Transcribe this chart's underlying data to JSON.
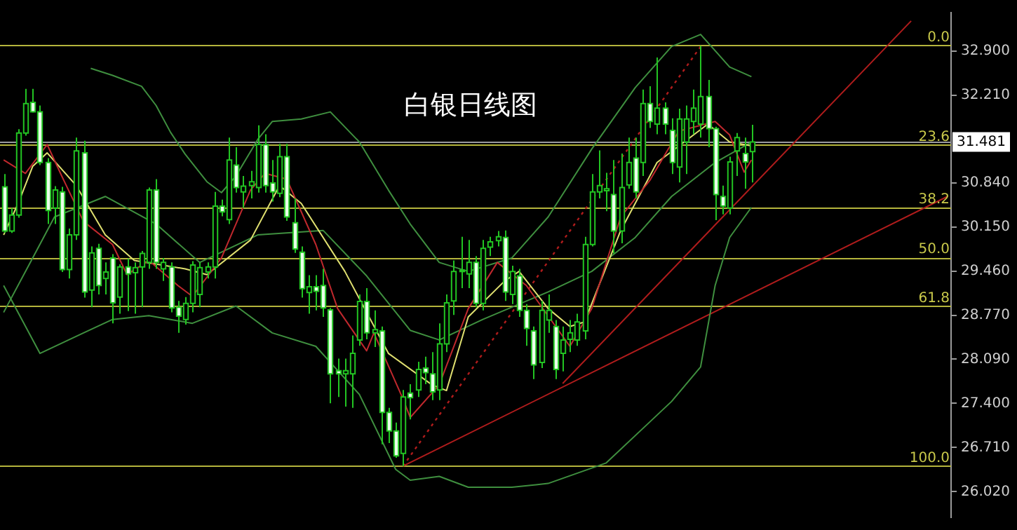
{
  "chart_data": {
    "type": "candlestick",
    "title": "白银日线图",
    "categories": [
      null,
      null,
      null,
      null,
      null,
      null,
      null,
      null,
      null,
      null,
      null,
      null,
      null,
      null,
      null,
      null,
      null,
      null,
      null,
      null,
      null,
      null,
      null,
      null,
      null,
      null,
      null,
      null,
      null,
      null,
      null,
      null,
      null,
      null,
      null,
      null,
      null,
      null,
      null,
      null,
      null,
      null,
      null,
      null,
      null,
      null,
      null,
      null,
      null,
      null,
      null,
      null,
      null,
      null,
      null,
      null,
      null,
      null,
      null,
      null,
      null,
      null,
      null,
      null,
      null,
      null,
      null,
      null,
      null,
      null,
      null,
      null,
      null,
      null,
      null,
      null,
      null,
      null,
      null,
      null,
      null,
      null,
      null,
      null,
      null,
      null,
      null,
      null,
      null,
      null,
      null,
      null,
      null,
      null,
      null,
      null,
      null,
      null,
      null,
      null,
      null,
      null,
      null,
      null,
      null,
      null,
      null,
      null,
      null,
      null,
      null,
      null,
      null,
      null,
      null,
      null,
      null,
      null,
      null,
      null,
      null,
      null,
      null,
      null,
      null,
      null,
      null,
      null,
      null,
      null,
      null
    ],
    "ohlc": [
      [
        30.78,
        30.98,
        30.06,
        30.09
      ],
      [
        30.09,
        30.45,
        30.06,
        30.34
      ],
      [
        30.34,
        31.68,
        30.3,
        31.62
      ],
      [
        31.62,
        32.31,
        31.58,
        32.08
      ],
      [
        32.1,
        32.31,
        31.94,
        31.95
      ],
      [
        31.95,
        32.05,
        31.12,
        31.16
      ],
      [
        31.16,
        31.23,
        30.2,
        30.41
      ],
      [
        30.45,
        30.79,
        30.2,
        30.73
      ],
      [
        30.7,
        30.78,
        29.45,
        29.49
      ],
      [
        29.49,
        30.13,
        29.35,
        30.03
      ],
      [
        30.03,
        31.55,
        29.95,
        31.34
      ],
      [
        31.31,
        31.5,
        29.05,
        29.14
      ],
      [
        29.17,
        29.85,
        28.9,
        29.75
      ],
      [
        29.82,
        29.89,
        29.1,
        29.24
      ],
      [
        29.35,
        29.6,
        29.1,
        29.45
      ],
      [
        29.67,
        29.73,
        28.65,
        28.97
      ],
      [
        29.06,
        29.57,
        28.8,
        29.53
      ],
      [
        29.53,
        29.66,
        28.84,
        29.42
      ],
      [
        29.44,
        29.6,
        28.8,
        29.52
      ],
      [
        29.53,
        29.78,
        28.9,
        29.74
      ],
      [
        29.6,
        30.77,
        29.5,
        30.73
      ],
      [
        30.73,
        30.9,
        29.5,
        29.6
      ],
      [
        29.5,
        29.67,
        29.31,
        29.6
      ],
      [
        29.53,
        29.6,
        28.82,
        28.89
      ],
      [
        28.9,
        29.0,
        28.5,
        28.76
      ],
      [
        28.71,
        29.06,
        28.63,
        28.96
      ],
      [
        28.96,
        29.62,
        28.82,
        29.56
      ],
      [
        29.1,
        29.6,
        28.9,
        29.52
      ],
      [
        29.45,
        29.6,
        29.35,
        29.53
      ],
      [
        29.53,
        30.7,
        29.35,
        30.48
      ],
      [
        30.48,
        30.58,
        30.32,
        30.39
      ],
      [
        30.27,
        31.55,
        30.2,
        31.2
      ],
      [
        31.12,
        31.4,
        30.69,
        30.77
      ],
      [
        30.7,
        30.95,
        30.45,
        30.79
      ],
      [
        30.8,
        31.03,
        30.6,
        30.86
      ],
      [
        30.77,
        31.74,
        30.69,
        31.44
      ],
      [
        31.44,
        31.6,
        30.69,
        30.8
      ],
      [
        30.84,
        31.2,
        30.55,
        30.7
      ],
      [
        30.68,
        31.45,
        30.62,
        31.25
      ],
      [
        31.25,
        31.45,
        30.25,
        30.31
      ],
      [
        30.22,
        30.6,
        29.75,
        29.81
      ],
      [
        29.76,
        29.85,
        29.05,
        29.19
      ],
      [
        29.13,
        29.4,
        28.8,
        29.22
      ],
      [
        29.22,
        29.4,
        28.85,
        29.15
      ],
      [
        29.24,
        29.5,
        28.75,
        28.89
      ],
      [
        28.86,
        28.89,
        27.4,
        27.86
      ],
      [
        27.91,
        28.1,
        27.5,
        27.86
      ],
      [
        27.86,
        28.1,
        27.35,
        27.91
      ],
      [
        27.86,
        28.46,
        27.33,
        28.18
      ],
      [
        28.39,
        29.1,
        28.3,
        28.99
      ],
      [
        28.99,
        29.2,
        28.4,
        28.5
      ],
      [
        28.5,
        28.85,
        28.28,
        28.55
      ],
      [
        28.53,
        28.6,
        26.76,
        27.26
      ],
      [
        27.26,
        27.33,
        26.78,
        26.97
      ],
      [
        26.97,
        27.1,
        26.55,
        26.58
      ],
      [
        26.62,
        27.61,
        26.42,
        27.5
      ],
      [
        27.56,
        27.7,
        27.15,
        27.49
      ],
      [
        27.61,
        28.05,
        27.5,
        27.93
      ],
      [
        27.95,
        28.13,
        27.7,
        27.88
      ],
      [
        27.86,
        28.2,
        27.45,
        27.58
      ],
      [
        27.61,
        28.65,
        27.45,
        28.33
      ],
      [
        28.33,
        29.1,
        28.2,
        28.97
      ],
      [
        29.0,
        29.63,
        28.78,
        29.46
      ],
      [
        29.46,
        30.0,
        29.2,
        29.48
      ],
      [
        29.42,
        29.95,
        29.2,
        29.6
      ],
      [
        29.6,
        29.7,
        28.9,
        28.96
      ],
      [
        28.96,
        29.95,
        28.85,
        29.82
      ],
      [
        29.84,
        30.0,
        29.7,
        29.92
      ],
      [
        29.94,
        30.09,
        29.85,
        30.0
      ],
      [
        29.99,
        30.1,
        29.0,
        29.14
      ],
      [
        29.1,
        29.55,
        28.95,
        29.46
      ],
      [
        29.39,
        29.5,
        28.75,
        28.85
      ],
      [
        28.85,
        28.95,
        28.3,
        28.57
      ],
      [
        28.53,
        28.6,
        27.78,
        28.0
      ],
      [
        28.04,
        29.0,
        27.95,
        28.85
      ],
      [
        28.7,
        29.1,
        28.5,
        28.85
      ],
      [
        28.6,
        28.7,
        27.78,
        27.93
      ],
      [
        28.18,
        28.6,
        27.9,
        28.39
      ],
      [
        28.4,
        28.7,
        28.2,
        28.5
      ],
      [
        28.39,
        28.8,
        28.3,
        28.67
      ],
      [
        28.53,
        30.0,
        28.4,
        29.88
      ],
      [
        29.88,
        30.98,
        29.85,
        30.7
      ],
      [
        30.7,
        31.35,
        30.6,
        30.8
      ],
      [
        30.72,
        31.0,
        30.4,
        30.75
      ],
      [
        30.66,
        31.2,
        29.74,
        30.09
      ],
      [
        30.09,
        31.3,
        29.9,
        30.77
      ],
      [
        30.81,
        31.55,
        30.75,
        31.16
      ],
      [
        31.23,
        31.55,
        30.6,
        30.7
      ],
      [
        31.16,
        32.3,
        30.95,
        32.08
      ],
      [
        32.08,
        32.35,
        31.7,
        31.8
      ],
      [
        31.76,
        32.8,
        31.6,
        32.01
      ],
      [
        32.01,
        32.1,
        31.6,
        31.76
      ],
      [
        31.66,
        31.85,
        30.98,
        31.16
      ],
      [
        31.09,
        32.0,
        30.85,
        31.84
      ],
      [
        31.48,
        32.05,
        30.98,
        31.84
      ],
      [
        31.8,
        32.3,
        31.6,
        32.01
      ],
      [
        31.76,
        32.98,
        31.55,
        32.19
      ],
      [
        32.19,
        32.45,
        31.4,
        31.69
      ],
      [
        31.69,
        31.72,
        30.26,
        30.66
      ],
      [
        30.63,
        30.8,
        30.35,
        30.48
      ],
      [
        30.45,
        31.25,
        30.35,
        31.17
      ],
      [
        31.34,
        31.62,
        30.95,
        31.55
      ],
      [
        31.3,
        31.55,
        30.75,
        31.17
      ],
      [
        31.33,
        31.75,
        30.85,
        31.48
      ],
      null,
      null,
      null,
      null,
      null,
      null,
      null,
      null,
      null,
      null,
      null,
      null,
      null,
      null,
      null,
      null,
      null,
      null,
      null,
      null,
      null,
      null,
      null,
      null,
      null,
      null,
      null
    ],
    "series": [
      {
        "type": "line",
        "color": "#c0282d",
        "values": [
          31.2,
          null,
          null,
          30.99,
          null,
          null,
          31.44,
          null,
          30.95,
          null,
          null,
          30.24,
          null,
          null,
          null,
          29.88,
          null,
          29.41,
          null,
          null,
          29.63,
          null,
          null,
          null,
          29.24,
          null,
          29.07,
          null,
          null,
          null,
          29.67,
          null,
          null,
          null,
          30.73,
          null,
          30.99,
          null,
          null,
          30.9,
          null,
          null,
          null,
          29.88,
          null,
          null,
          28.88,
          null,
          null,
          null,
          28.22,
          28.5,
          null,
          null,
          null,
          27.47,
          27.18,
          null,
          null,
          null,
          27.69,
          null,
          null,
          null,
          28.88,
          null,
          null,
          null,
          29.6,
          null,
          null,
          null,
          29.24,
          null,
          null,
          null,
          null,
          null,
          28.29,
          null,
          null,
          28.88,
          null,
          null,
          null,
          30.31,
          null,
          null,
          null,
          30.88,
          null,
          null,
          null,
          31.65,
          null,
          null,
          null,
          null,
          31.8,
          null,
          31.59,
          null,
          31.01,
          31.2,
          null,
          null,
          null,
          null,
          null,
          null,
          null,
          null,
          null,
          null,
          null,
          null,
          null,
          null,
          null,
          null,
          null,
          null,
          null,
          null,
          null,
          null,
          null,
          null,
          null,
          null,
          null
        ]
      },
      {
        "type": "line",
        "color": "#e0e070",
        "values": [
          30.03,
          null,
          30.52,
          null,
          31.1,
          null,
          31.31,
          null,
          null,
          null,
          30.8,
          null,
          null,
          null,
          30.03,
          null,
          null,
          null,
          29.63,
          null,
          null,
          null,
          null,
          null,
          null,
          29.5,
          null,
          null,
          29.41,
          null,
          null,
          null,
          null,
          null,
          29.95,
          null,
          null,
          null,
          30.8,
          null,
          null,
          30.52,
          null,
          null,
          null,
          null,
          null,
          29.46,
          null,
          null,
          null,
          null,
          null,
          28.18,
          null,
          null,
          null,
          null,
          null,
          27.69,
          null,
          27.6,
          null,
          null,
          28.75,
          null,
          null,
          null,
          null,
          29.31,
          null,
          29.46,
          null,
          null,
          null,
          28.88,
          null,
          null,
          28.6,
          null,
          28.67,
          null,
          null,
          null,
          null,
          30.1,
          null,
          null,
          null,
          null,
          31.16,
          null,
          null,
          null,
          null,
          null,
          null,
          31.76,
          null,
          null,
          31.48,
          null,
          null,
          31.42,
          null,
          null,
          null,
          null,
          null,
          null,
          null,
          null,
          null,
          null,
          null,
          null,
          null,
          null,
          null,
          null,
          null,
          null,
          null,
          null,
          null,
          null,
          null,
          null,
          null,
          null,
          null
        ]
      },
      {
        "type": "line",
        "color": "#3f8f3f",
        "values": [
          28.82,
          null,
          null,
          null,
          29.67,
          null,
          null,
          30.31,
          null,
          null,
          null,
          null,
          null,
          null,
          30.63,
          null,
          null,
          null,
          null,
          null,
          null,
          30.2,
          null,
          null,
          null,
          null,
          null,
          29.6,
          null,
          null,
          null,
          null,
          null,
          null,
          null,
          30.03,
          null,
          null,
          null,
          null,
          null,
          null,
          null,
          null,
          30.1,
          null,
          null,
          null,
          null,
          null,
          29.39,
          null,
          null,
          null,
          null,
          null,
          28.54,
          null,
          null,
          null,
          28.39,
          null,
          null,
          null,
          null,
          null,
          28.71,
          null,
          null,
          null,
          null,
          null,
          null,
          null,
          null,
          29.14,
          null,
          null,
          null,
          null,
          null,
          29.46,
          null,
          null,
          null,
          null,
          null,
          29.99,
          null,
          null,
          null,
          null,
          30.63,
          null,
          null,
          null,
          null,
          null,
          31.16,
          null,
          null,
          null,
          null,
          31.48,
          null,
          null,
          null,
          null,
          null,
          null,
          null,
          null,
          null,
          null,
          null,
          null,
          null,
          null,
          null,
          null,
          null,
          null,
          null,
          null,
          null,
          null,
          null,
          null,
          null,
          null,
          null
        ]
      },
      {
        "type": "line",
        "color": "#3f8f3f",
        "values": [
          null,
          null,
          null,
          null,
          null,
          null,
          null,
          null,
          null,
          null,
          null,
          null,
          32.63,
          null,
          null,
          32.52,
          null,
          null,
          null,
          32.35,
          null,
          32.05,
          null,
          31.63,
          null,
          31.29,
          null,
          null,
          30.86,
          null,
          30.69,
          null,
          30.95,
          null,
          null,
          31.52,
          null,
          31.8,
          null,
          null,
          null,
          31.84,
          null,
          null,
          null,
          31.95,
          null,
          null,
          null,
          31.48,
          null,
          null,
          null,
          30.73,
          null,
          null,
          30.2,
          null,
          null,
          null,
          29.6,
          null,
          null,
          null,
          29.46,
          null,
          null,
          null,
          null,
          null,
          29.67,
          null,
          null,
          null,
          null,
          30.31,
          null,
          null,
          null,
          null,
          null,
          31.37,
          null,
          null,
          null,
          null,
          null,
          32.33,
          null,
          null,
          null,
          null,
          32.97,
          null,
          null,
          null,
          33.16,
          null,
          null,
          null,
          32.65,
          null,
          null,
          32.5,
          null,
          null,
          null,
          null,
          null,
          null,
          null,
          null,
          null,
          null,
          null,
          null,
          null,
          null,
          null,
          null,
          null,
          null,
          null,
          null,
          null,
          null,
          null,
          null,
          null,
          null,
          null
        ]
      },
      {
        "type": "line",
        "color": "#3f8f3f",
        "values": [
          29.24,
          null,
          null,
          null,
          null,
          28.18,
          null,
          null,
          null,
          null,
          null,
          28.5,
          null,
          null,
          null,
          28.71,
          null,
          null,
          null,
          null,
          28.77,
          null,
          null,
          null,
          null,
          null,
          28.65,
          null,
          null,
          null,
          null,
          null,
          28.92,
          null,
          null,
          null,
          null,
          28.5,
          null,
          null,
          null,
          null,
          null,
          28.29,
          null,
          null,
          null,
          null,
          null,
          27.54,
          null,
          null,
          null,
          null,
          26.37,
          null,
          26.2,
          null,
          null,
          null,
          26.26,
          null,
          null,
          null,
          26.09,
          null,
          null,
          null,
          null,
          null,
          26.09,
          null,
          null,
          null,
          null,
          26.15,
          null,
          null,
          null,
          null,
          null,
          null,
          null,
          26.47,
          null,
          null,
          null,
          null,
          null,
          27.11,
          null,
          null,
          27.43,
          null,
          null,
          null,
          27.97,
          null,
          29.24,
          null,
          29.99,
          null,
          null,
          30.46,
          null,
          null,
          null,
          null,
          null,
          null,
          null,
          null,
          null,
          null,
          null,
          null,
          null,
          null,
          null,
          null,
          null,
          null,
          null,
          null,
          null,
          null,
          null,
          null,
          null,
          null,
          null
        ]
      },
      {
        "type": "line",
        "color": "#b01c1c",
        "values": [
          null,
          null,
          null,
          null,
          null,
          null,
          null,
          null,
          null,
          null,
          null,
          null,
          null,
          null,
          null,
          null,
          null,
          null,
          null,
          null,
          null,
          null,
          null,
          null,
          null,
          null,
          null,
          null,
          null,
          null,
          null,
          null,
          null,
          null,
          null,
          null,
          null,
          null,
          null,
          null,
          null,
          null,
          null,
          null,
          null,
          null,
          null,
          null,
          null,
          null,
          null,
          null,
          null,
          null,
          null,
          26.42,
          null,
          null,
          null,
          null,
          null,
          null,
          null,
          null,
          null,
          null,
          null,
          null,
          null,
          null,
          null,
          null,
          null,
          null,
          null,
          null,
          null,
          null,
          null,
          null,
          null,
          null,
          null,
          null,
          null,
          null,
          null,
          null,
          null,
          null,
          null,
          null,
          null,
          null,
          null,
          null,
          null,
          null,
          null,
          null,
          null,
          null,
          null,
          null,
          null,
          null,
          null,
          null,
          null,
          null,
          null,
          null,
          null,
          null,
          null,
          null,
          null,
          null,
          null,
          null,
          null,
          null,
          null,
          null,
          null,
          null,
          null,
          null,
          null,
          null,
          30.63
        ]
      },
      {
        "type": "line",
        "color": "#b01c1c",
        "values": [
          null,
          null,
          null,
          null,
          null,
          null,
          null,
          null,
          null,
          null,
          null,
          null,
          null,
          null,
          null,
          null,
          null,
          null,
          null,
          null,
          null,
          null,
          null,
          null,
          null,
          null,
          null,
          null,
          null,
          null,
          null,
          null,
          null,
          null,
          null,
          null,
          null,
          null,
          null,
          null,
          null,
          null,
          null,
          null,
          null,
          null,
          null,
          null,
          null,
          null,
          null,
          null,
          null,
          null,
          null,
          null,
          null,
          null,
          null,
          null,
          null,
          null,
          null,
          null,
          null,
          null,
          null,
          null,
          null,
          null,
          null,
          null,
          null,
          null,
          null,
          null,
          null,
          27.71,
          null,
          null,
          null,
          null,
          null,
          null,
          null,
          null,
          null,
          null,
          null,
          null,
          null,
          null,
          null,
          null,
          null,
          null,
          null,
          null,
          null,
          null,
          null,
          null,
          null,
          null,
          null,
          null,
          null,
          null,
          null,
          null,
          null,
          null,
          null,
          null,
          null,
          null,
          null,
          null,
          null,
          null,
          null,
          null,
          null,
          null,
          null,
          33.37,
          null,
          null,
          null,
          null,
          null
        ]
      },
      {
        "type": "line",
        "color": "#b01c1c",
        "line_style": "dotted",
        "values": [
          null,
          null,
          null,
          null,
          null,
          null,
          null,
          null,
          null,
          null,
          null,
          null,
          null,
          null,
          null,
          null,
          null,
          null,
          null,
          null,
          null,
          null,
          null,
          null,
          null,
          null,
          null,
          null,
          null,
          null,
          null,
          null,
          null,
          null,
          null,
          null,
          null,
          null,
          null,
          null,
          null,
          null,
          null,
          null,
          null,
          null,
          null,
          null,
          null,
          null,
          null,
          null,
          null,
          null,
          null,
          26.42,
          null,
          null,
          null,
          null,
          null,
          null,
          null,
          null,
          null,
          null,
          null,
          null,
          null,
          null,
          null,
          null,
          null,
          null,
          null,
          null,
          null,
          null,
          null,
          null,
          null,
          null,
          null,
          null,
          null,
          null,
          null,
          null,
          null,
          null,
          null,
          null,
          null,
          null,
          null,
          null,
          32.97,
          null,
          null,
          null,
          null,
          null,
          null,
          null,
          null,
          null,
          null,
          null,
          null,
          null,
          null,
          null,
          null,
          null,
          null,
          null,
          null,
          null,
          null,
          null,
          null,
          null,
          null,
          null,
          null,
          null,
          null,
          null,
          null,
          null,
          null
        ]
      }
    ],
    "ylim": [
      25.62,
      33.5
    ],
    "yticks": [
      {
        "value": 26.02,
        "label": "26.020"
      },
      {
        "value": 26.71,
        "label": "26.710"
      },
      {
        "value": 27.4,
        "label": "27.400"
      },
      {
        "value": 28.09,
        "label": "28.090"
      },
      {
        "value": 28.77,
        "label": "28.770"
      },
      {
        "value": 29.46,
        "label": "29.460"
      },
      {
        "value": 30.15,
        "label": "30.150"
      },
      {
        "value": 30.84,
        "label": "30.840"
      },
      {
        "value": 32.21,
        "label": "32.210"
      },
      {
        "value": 32.9,
        "label": "32.900"
      }
    ],
    "ref_lines": [
      {
        "axis": "y",
        "value": 32.986,
        "color": "#b4b43c"
      },
      {
        "axis": "y",
        "value": 31.481,
        "label": "31.481",
        "color": "#9a9aa0"
      },
      {
        "axis": "y",
        "value": 31.436,
        "color": "#b4b43c"
      },
      {
        "axis": "y",
        "value": 30.46,
        "color": "#b4b43c"
      },
      {
        "axis": "y",
        "value": 29.68,
        "color": "#b4b43c"
      },
      {
        "axis": "y",
        "value": 28.92,
        "color": "#b4b43c"
      },
      {
        "axis": "y",
        "value": 26.42,
        "color": "#b4b43c"
      }
    ],
    "annotations": [
      {
        "text": "0.0",
        "y": 32.986
      },
      {
        "text": "23.6",
        "y": 31.436
      },
      {
        "text": "38.2",
        "y": 30.46
      },
      {
        "text": "50.0",
        "y": 29.68
      },
      {
        "text": "61.8",
        "y": 28.92
      },
      {
        "text": "100.0",
        "y": 26.42
      }
    ],
    "tick_labels": "y",
    "grid": false,
    "legend": false,
    "marker": "none"
  }
}
